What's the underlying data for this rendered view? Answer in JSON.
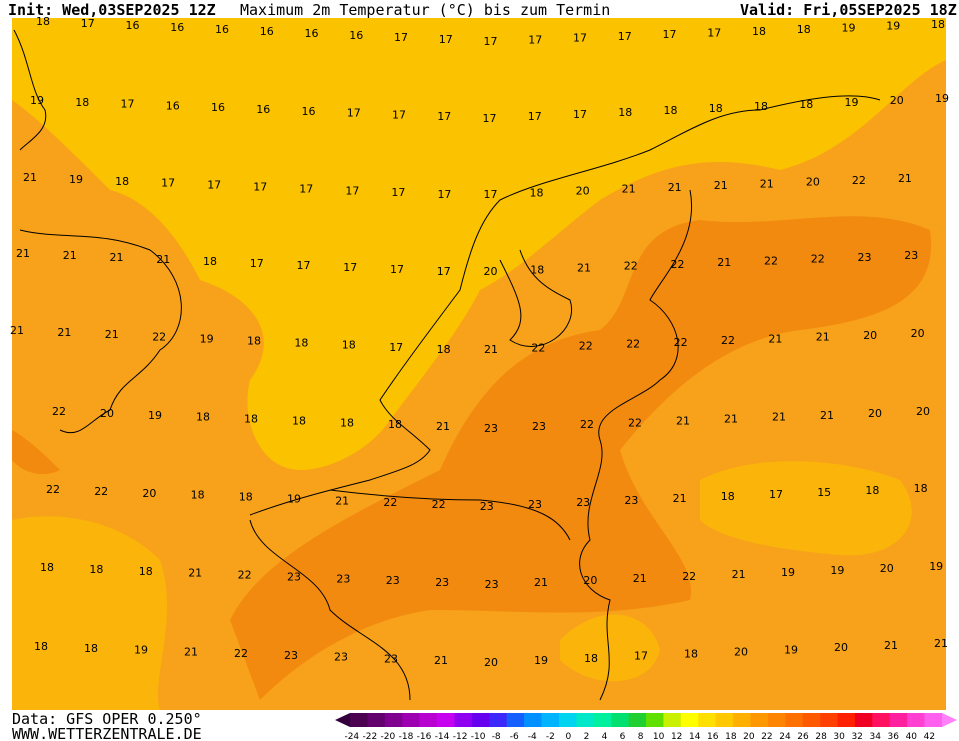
{
  "header": {
    "init": "Init: Wed,03SEP2025 12Z",
    "title": "Maximum 2m Temperatur (°C) bis zum Termin",
    "valid": "Valid: Fri,05SEP2025 18Z"
  },
  "map": {
    "rows": [
      [
        18,
        17,
        16,
        16,
        16,
        16,
        16,
        16,
        17,
        17,
        17,
        17,
        17,
        17,
        17,
        17,
        18,
        18,
        19,
        19,
        18
      ],
      [
        19,
        18,
        17,
        16,
        16,
        16,
        16,
        17,
        17,
        17,
        17,
        17,
        17,
        18,
        18,
        18,
        18,
        18,
        19,
        20,
        19
      ],
      [
        21,
        19,
        18,
        17,
        17,
        17,
        17,
        17,
        17,
        17,
        17,
        18,
        20,
        21,
        21,
        21,
        21,
        20,
        22,
        21
      ],
      [
        21,
        21,
        21,
        21,
        18,
        17,
        17,
        17,
        17,
        17,
        20,
        18,
        21,
        22,
        22,
        21,
        22,
        22,
        23,
        23
      ],
      [
        21,
        21,
        21,
        22,
        19,
        18,
        18,
        18,
        17,
        18,
        21,
        22,
        22,
        22,
        22,
        22,
        21,
        21,
        20,
        20
      ],
      [
        22,
        20,
        19,
        18,
        18,
        18,
        18,
        18,
        21,
        23,
        23,
        22,
        22,
        21,
        21,
        21,
        21,
        20,
        20
      ],
      [
        22,
        22,
        20,
        18,
        18,
        19,
        21,
        22,
        22,
        23,
        23,
        23,
        23,
        21,
        18,
        17,
        15,
        18,
        18
      ],
      [
        18,
        18,
        18,
        21,
        22,
        23,
        23,
        23,
        23,
        23,
        21,
        20,
        21,
        22,
        21,
        19,
        19,
        20,
        19
      ],
      [
        18,
        18,
        19,
        21,
        22,
        23,
        23,
        23,
        21,
        20,
        19,
        18,
        17,
        18,
        20,
        19,
        20,
        21,
        21
      ]
    ]
  },
  "footer": {
    "data": "Data: GFS OPER 0.250°",
    "site": "WWW.WETTERZENTRALE.DE"
  },
  "colorbar": {
    "ticks": [
      -24,
      -22,
      -20,
      -18,
      -16,
      -14,
      -12,
      -10,
      -8,
      -6,
      -4,
      -2,
      0,
      2,
      4,
      6,
      8,
      10,
      12,
      14,
      16,
      18,
      20,
      22,
      24,
      26,
      28,
      30,
      32,
      34,
      36,
      40,
      42
    ]
  }
}
